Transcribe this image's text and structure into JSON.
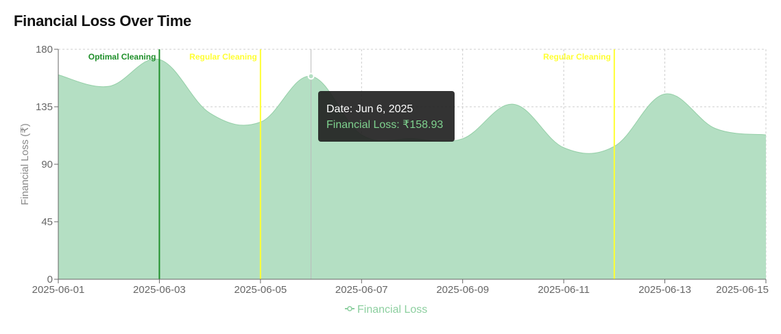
{
  "title": "Financial Loss Over Time",
  "colors": {
    "area_fill": "#b4dfc3",
    "area_stroke": "#94cfa7",
    "optimal": "#1f8f2a",
    "regular": "#ffff33",
    "legend": "#8ccf9f"
  },
  "chart_data": {
    "type": "area",
    "ylabel": "Financial Loss (₹)",
    "ylim": [
      0,
      180
    ],
    "yticks": [
      0,
      45,
      90,
      135,
      180
    ],
    "xticks": [
      "2025-06-01",
      "2025-06-03",
      "2025-06-05",
      "2025-06-07",
      "2025-06-09",
      "2025-06-11",
      "2025-06-13",
      "2025-06-15"
    ],
    "grid": true,
    "legend_position": "bottom",
    "series": [
      {
        "name": "Financial Loss",
        "x": [
          "2025-06-01",
          "2025-06-02",
          "2025-06-03",
          "2025-06-04",
          "2025-06-05",
          "2025-06-06",
          "2025-06-07",
          "2025-06-08",
          "2025-06-09",
          "2025-06-10",
          "2025-06-11",
          "2025-06-12",
          "2025-06-13",
          "2025-06-14",
          "2025-06-15"
        ],
        "values": [
          160,
          151,
          172,
          130,
          123,
          158.93,
          113,
          110,
          110,
          137,
          103,
          104,
          145,
          118,
          113
        ]
      }
    ],
    "annotations": [
      {
        "x": "2025-06-03",
        "label": "Optimal Cleaning",
        "kind": "optimal"
      },
      {
        "x": "2025-06-05",
        "label": "Regular Cleaning",
        "kind": "regular"
      },
      {
        "x": "2025-06-12",
        "label": "Regular Cleaning",
        "kind": "regular"
      }
    ],
    "tooltip": {
      "x": "2025-06-06",
      "date_text": "Date: Jun 6, 2025",
      "value_text": "Financial Loss: ₹158.93"
    }
  }
}
